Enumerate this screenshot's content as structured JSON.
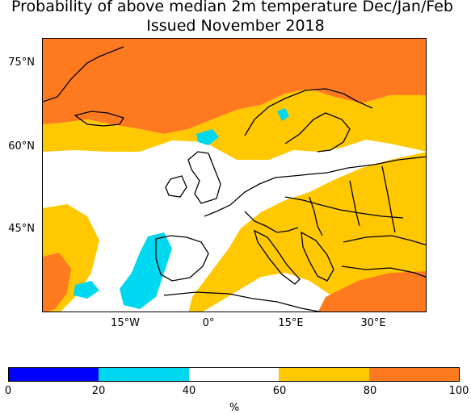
{
  "title": {
    "line1": "Probability of above median 2m temperature Dec/Jan/Feb",
    "line2": "Issued November 2018"
  },
  "map": {
    "lat_labels": [
      "75°N",
      "60°N",
      "45°N"
    ],
    "lon_labels": [
      "15°W",
      "0°",
      "15°E",
      "30°E"
    ],
    "categories": {
      "0-20": "#0000ff",
      "20-40": "#00d8f0",
      "40-60": "#ffffff",
      "60-80": "#ffc800",
      "80-100": "#ff7a1f"
    }
  },
  "colorbar": {
    "ticks": [
      "0",
      "20",
      "40",
      "60",
      "80",
      "100"
    ],
    "colors": [
      "#0000ff",
      "#00d8f0",
      "#ffffff",
      "#ffc800",
      "#ff7a1f"
    ],
    "unit": "%"
  }
}
